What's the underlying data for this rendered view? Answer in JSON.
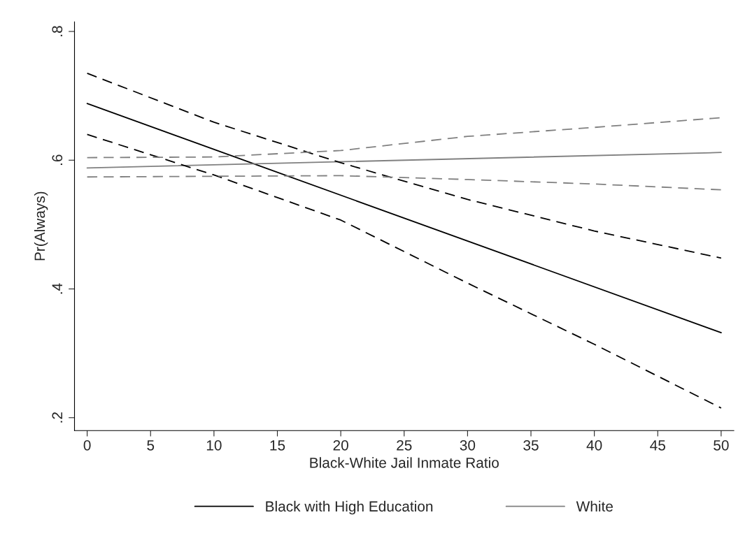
{
  "chart_data": {
    "type": "line",
    "xlabel": "Black-White Jail Inmate Ratio",
    "ylabel": "Pr(Always)",
    "xlim": [
      -1,
      51
    ],
    "xticks": [
      0,
      5,
      10,
      15,
      20,
      25,
      30,
      35,
      40,
      45,
      50
    ],
    "ylim": [
      0.18,
      0.815
    ],
    "yticks": [
      {
        "value": 0.2,
        "label": ".2"
      },
      {
        "value": 0.4,
        "label": ".4"
      },
      {
        "value": 0.6,
        "label": ".6"
      },
      {
        "value": 0.8,
        "label": ".8"
      }
    ],
    "grid": false,
    "legend": "bottom",
    "marker": "none",
    "series": [
      {
        "name": "Black with High Education",
        "color": "#000000",
        "line_style": "solid",
        "x": [
          0,
          50
        ],
        "values": [
          0.688,
          0.332
        ]
      },
      {
        "name": "White",
        "color": "#808080",
        "line_style": "solid",
        "x": [
          0,
          50
        ],
        "values": [
          0.588,
          0.612
        ]
      },
      {
        "color": "#000000",
        "line_style": "dashed",
        "x": [
          0,
          10,
          20,
          30,
          40,
          50
        ],
        "values": [
          0.735,
          0.659,
          0.596,
          0.539,
          0.49,
          0.448
        ]
      },
      {
        "color": "#000000",
        "line_style": "dashed",
        "x": [
          0,
          10,
          20,
          30,
          40,
          50
        ],
        "values": [
          0.64,
          0.577,
          0.507,
          0.409,
          0.314,
          0.215
        ]
      },
      {
        "color": "#808080",
        "line_style": "dashed",
        "x": [
          0,
          10,
          20,
          30,
          40,
          50
        ],
        "values": [
          0.604,
          0.605,
          0.615,
          0.637,
          0.651,
          0.666
        ]
      },
      {
        "color": "#808080",
        "line_style": "dashed",
        "x": [
          0,
          10,
          20,
          30,
          40,
          50
        ],
        "values": [
          0.574,
          0.575,
          0.576,
          0.57,
          0.563,
          0.554
        ]
      }
    ]
  }
}
